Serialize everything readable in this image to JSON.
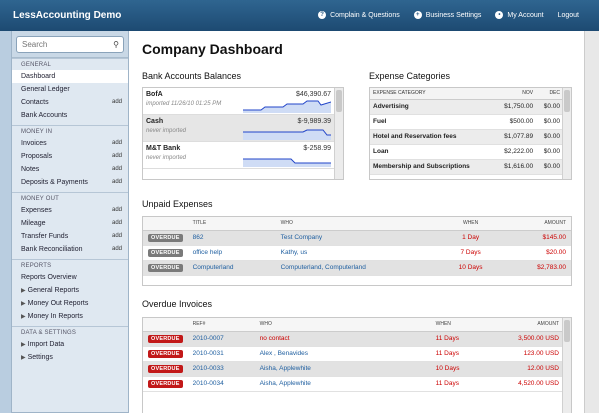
{
  "app": {
    "title": "LessAccounting Demo"
  },
  "topnav": [
    {
      "label": "Complain & Questions",
      "icon": "question-icon"
    },
    {
      "label": "Business Settings",
      "icon": "settings-icon"
    },
    {
      "label": "My Account",
      "icon": "user-icon"
    },
    {
      "label": "Logout"
    }
  ],
  "search": {
    "placeholder": "Search"
  },
  "sidebar": {
    "general": {
      "title": "General",
      "items": [
        "Dashboard",
        "General Ledger",
        "Contacts",
        "Bank Accounts"
      ]
    },
    "money_in": {
      "title": "Money In",
      "items": [
        "Invoices",
        "Proposals",
        "Notes",
        "Deposits & Payments"
      ]
    },
    "money_out": {
      "title": "Money Out",
      "items": [
        "Expenses",
        "Mileage",
        "Transfer Funds",
        "Bank Reconciliation"
      ]
    },
    "reports": {
      "title": "Reports",
      "items": [
        "Reports Overview",
        "General Reports",
        "Money Out Reports",
        "Money In Reports"
      ]
    },
    "data": {
      "title": "Data & Settings",
      "items": [
        "Import Data",
        "Settings"
      ]
    },
    "add_label": "add"
  },
  "page": {
    "title": "Company Dashboard"
  },
  "bank_section": {
    "title": "Bank Accounts Balances",
    "accounts": [
      {
        "name": "BofA",
        "sub": "imported 11/26/10 01:25 PM",
        "amount": "$46,390.67"
      },
      {
        "name": "Cash",
        "sub": "never imported",
        "amount": "$-9,989.39"
      },
      {
        "name": "M&T Bank",
        "sub": "never imported",
        "amount": "$-258.99"
      }
    ]
  },
  "expense_categories": {
    "title": "Expense Categories",
    "columns": [
      "EXPENSE CATEGORY",
      "NOV",
      "DEC"
    ],
    "rows": [
      [
        "Advertising",
        "$1,750.00",
        "$0.00"
      ],
      [
        "Fuel",
        "$500.00",
        "$0.00"
      ],
      [
        "Hotel and Reservation fees",
        "$1,077.89",
        "$0.00"
      ],
      [
        "Loan",
        "$2,222.00",
        "$0.00"
      ],
      [
        "Membership and Subscriptions",
        "$1,616.00",
        "$0.00"
      ]
    ]
  },
  "unpaid_expenses": {
    "title": "Unpaid Expenses",
    "columns": [
      "TITLE",
      "WHO",
      "WHEN",
      "AMOUNT"
    ],
    "rows": [
      {
        "status": "OVERDUE",
        "title": "862",
        "who": "Test Company",
        "when": "1 Day",
        "amount": "$145.00"
      },
      {
        "status": "OVERDUE",
        "title": "office help",
        "who": "Kathy, us",
        "when": "7 Days",
        "amount": "$20.00"
      },
      {
        "status": "OVERDUE",
        "title": "Computerland",
        "who": "Computerland, Computerland",
        "when": "10 Days",
        "amount": "$2,783.00"
      }
    ]
  },
  "overdue_invoices": {
    "title": "Overdue Invoices",
    "columns": [
      "REF#",
      "WHO",
      "WHEN",
      "AMOUNT"
    ],
    "rows": [
      {
        "status": "OVERDUE",
        "ref": "2010-0007",
        "who": "no contact",
        "when": "11 Days",
        "amount": "3,500.00 USD"
      },
      {
        "status": "OVERDUE",
        "ref": "2010-0031",
        "who": "Alex , Benavides",
        "when": "11 Days",
        "amount": "123.00 USD"
      },
      {
        "status": "OVERDUE",
        "ref": "2010-0033",
        "who": "Aisha, Applewhite",
        "when": "10 Days",
        "amount": "12.00 USD"
      },
      {
        "status": "OVERDUE",
        "ref": "2010-0034",
        "who": "Aisha, Applewhite",
        "when": "11 Days",
        "amount": "4,520.00 USD"
      }
    ]
  }
}
